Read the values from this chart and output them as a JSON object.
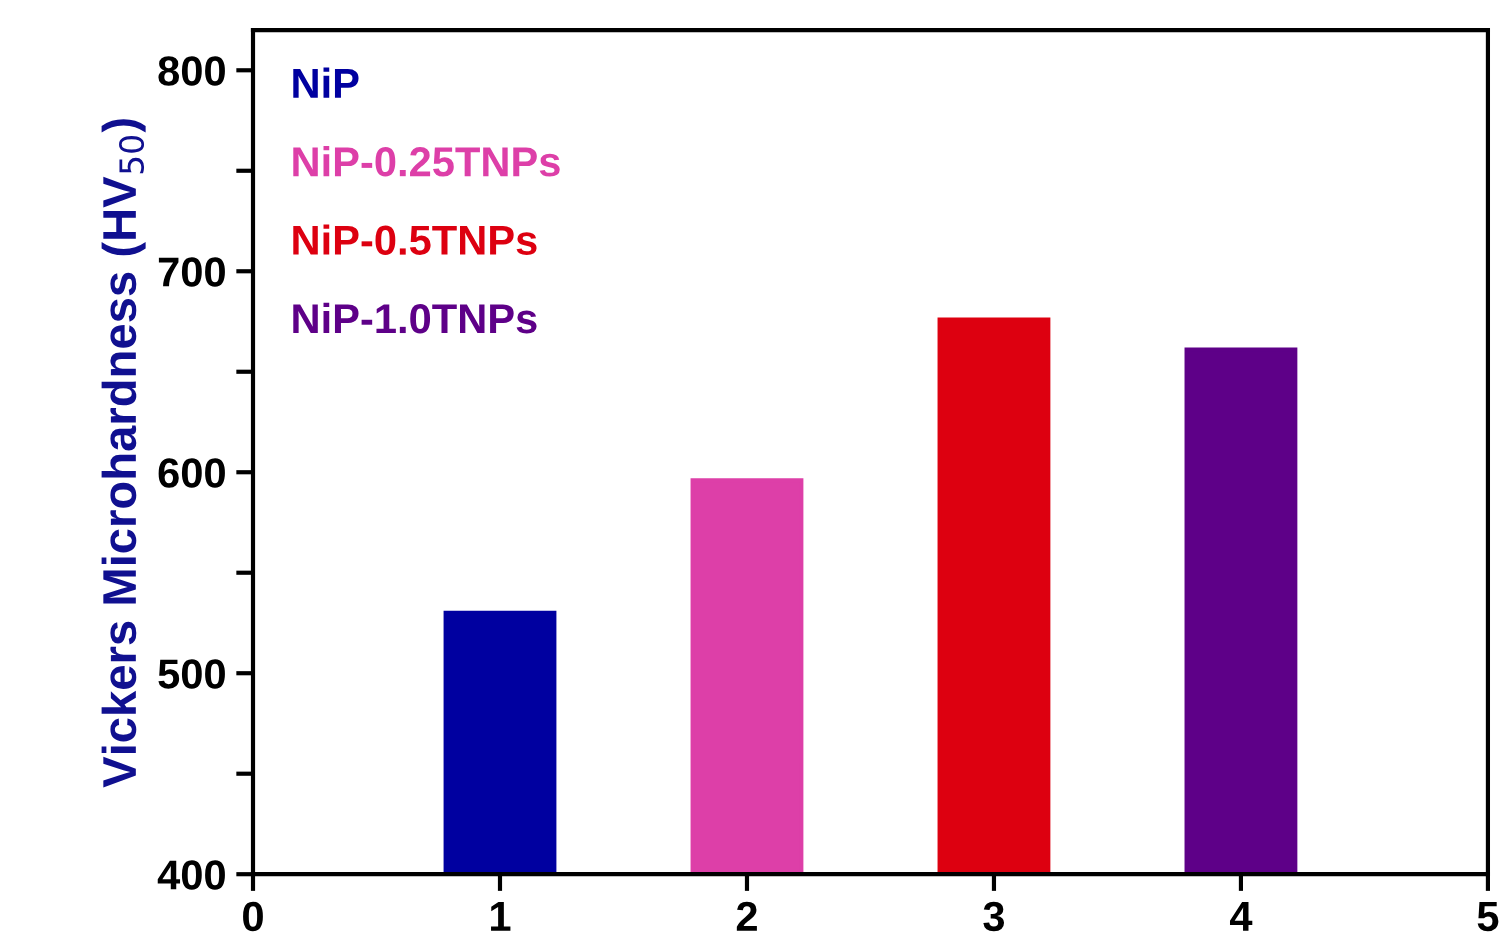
{
  "chart_data": {
    "type": "bar",
    "ylabel": "Vickers Microhardness (HV$_{50}$)",
    "x": [
      1,
      2,
      3,
      4
    ],
    "series": [
      {
        "name": "NiP",
        "color": "#0000a0",
        "values": [
          530,
          null,
          null,
          null
        ]
      },
      {
        "name": "NiP-0.25TNPs",
        "color": "#dd3fa8",
        "values": [
          null,
          596,
          null,
          null
        ]
      },
      {
        "name": "NiP-0.5TNPs",
        "color": "#dd0010",
        "values": [
          null,
          null,
          676,
          null
        ]
      },
      {
        "name": "NiP-1.0TNPs",
        "color": "#5e0088",
        "values": [
          null,
          null,
          null,
          661
        ]
      }
    ],
    "xlim": [
      0,
      5
    ],
    "xticks": [
      0,
      1,
      2,
      3,
      4,
      5
    ],
    "ylim": [
      400,
      820
    ],
    "yticks": [
      400,
      {
        "value": 450,
        "label": null
      },
      500,
      {
        "value": 550,
        "label": null
      },
      600,
      {
        "value": 650,
        "label": null
      },
      700,
      {
        "value": 750,
        "label": null
      },
      800
    ],
    "grid": false,
    "legend": "top left"
  }
}
